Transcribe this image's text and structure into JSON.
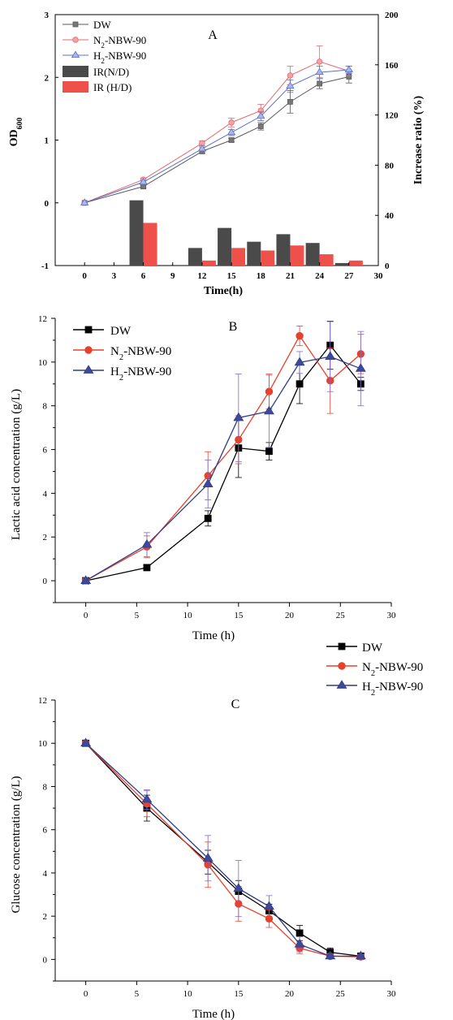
{
  "chart_data": [
    {
      "id": "A",
      "type": "line+bar",
      "panel_label": "A",
      "xlabel": "Time(h)",
      "ylabel_left": "OD",
      "ylabel_left_sub": "600",
      "ylabel_right": "Increase ratio (%)",
      "xlim": [
        -3,
        30
      ],
      "ylim_left": [
        -1,
        3
      ],
      "ylim_right": [
        0,
        200
      ],
      "xticks": [
        0,
        3,
        6,
        9,
        12,
        15,
        18,
        21,
        24,
        27,
        30
      ],
      "yticks_left": [
        -1,
        0,
        1,
        2,
        3
      ],
      "yticks_right": [
        0,
        40,
        80,
        120,
        160,
        200
      ],
      "legend": [
        {
          "label": "DW",
          "kind": "line",
          "color": "#595959",
          "marker": "square"
        },
        {
          "label": "N",
          "sub": "2",
          "rest": "-NBW-90",
          "kind": "line",
          "color": "#e8686c",
          "marker": "circle"
        },
        {
          "label": "H",
          "sub": "2",
          "rest": "-NBW-90",
          "kind": "line",
          "color": "#5a6fc9",
          "marker": "triangle"
        },
        {
          "label": "IR(N/D)",
          "kind": "bar",
          "color": "#4a4a4a"
        },
        {
          "label": "IR (H/D)",
          "kind": "bar",
          "color": "#f0504a"
        }
      ],
      "x": [
        0,
        6,
        12,
        15,
        18,
        21,
        24,
        27
      ],
      "series": [
        {
          "name": "DW",
          "color": "#595959",
          "marker": "square",
          "values": [
            0,
            0.26,
            0.82,
            1.0,
            1.22,
            1.61,
            1.9,
            2.01
          ],
          "err": [
            0,
            0.02,
            0.03,
            0.03,
            0.06,
            0.18,
            0.08,
            0.1
          ]
        },
        {
          "name": "N2-NBW-90",
          "color": "#e8686c",
          "marker": "circle",
          "values": [
            0,
            0.37,
            0.95,
            1.28,
            1.47,
            2.03,
            2.25,
            2.1
          ],
          "err": [
            0,
            0.02,
            0.04,
            0.07,
            0.1,
            0.15,
            0.25,
            0.08
          ]
        },
        {
          "name": "H2-NBW-90",
          "color": "#5a6fc9",
          "marker": "triangle",
          "values": [
            0,
            0.33,
            0.86,
            1.12,
            1.38,
            1.86,
            2.08,
            2.12
          ],
          "err": [
            0,
            0.02,
            0.03,
            0.05,
            0.07,
            0.1,
            0.1,
            0.06
          ]
        }
      ],
      "bars": [
        {
          "name": "IR(N/D)",
          "color": "#4a4a4a",
          "x": [
            6,
            12,
            15,
            18,
            21,
            24,
            27
          ],
          "values": [
            52,
            14,
            30,
            19,
            25,
            18,
            2
          ]
        },
        {
          "name": "IR (H/D)",
          "color": "#f0504a",
          "x": [
            6,
            12,
            15,
            18,
            21,
            24,
            27
          ],
          "values": [
            34,
            4,
            14,
            12,
            16,
            9,
            4
          ]
        }
      ]
    },
    {
      "id": "B",
      "type": "line",
      "panel_label": "B",
      "xlabel": "Time (h)",
      "ylabel": "Lactic acid concentration (g/L)",
      "xlim": [
        -3,
        30
      ],
      "ylim": [
        -1,
        12
      ],
      "xticks": [
        0,
        5,
        10,
        15,
        20,
        25,
        30
      ],
      "yticks": [
        0,
        2,
        4,
        6,
        8,
        10,
        12
      ],
      "x": [
        0,
        6,
        12,
        15,
        18,
        21,
        24,
        27
      ],
      "series": [
        {
          "name": "DW",
          "color": "#000000",
          "marker": "square",
          "values": [
            0,
            0.6,
            2.85,
            6.07,
            5.92,
            9.0,
            10.77,
            9.0
          ],
          "err": [
            0,
            0.05,
            0.35,
            1.35,
            0.4,
            0.9,
            1.1,
            0.3
          ]
        },
        {
          "name": "N2-NBW-90",
          "color": "#e8402a",
          "marker": "circle",
          "values": [
            0,
            1.55,
            4.8,
            6.45,
            8.65,
            11.2,
            9.15,
            10.37
          ],
          "err": [
            0,
            0.5,
            1.1,
            1.1,
            0.8,
            0.45,
            1.5,
            0.9
          ]
        },
        {
          "name": "H2-NBW-90",
          "color": "#2f3c8a",
          "marker": "triangle",
          "values": [
            0,
            1.65,
            4.42,
            7.45,
            7.75,
            9.98,
            10.25,
            9.7
          ],
          "err": [
            0,
            0.55,
            1.1,
            2.0,
            1.65,
            0.5,
            1.6,
            1.7
          ]
        }
      ]
    },
    {
      "id": "C",
      "type": "line",
      "panel_label": "C",
      "xlabel": "Time (h)",
      "ylabel": "Glucose concentration (g/L)",
      "xlim": [
        -3,
        30
      ],
      "ylim": [
        -1,
        12
      ],
      "xticks": [
        0,
        5,
        10,
        15,
        20,
        25,
        30
      ],
      "yticks": [
        0,
        2,
        4,
        6,
        8,
        10,
        12
      ],
      "x": [
        0,
        6,
        12,
        15,
        18,
        21,
        24,
        27
      ],
      "series": [
        {
          "name": "DW",
          "color": "#000000",
          "marker": "square",
          "values": [
            10,
            7.0,
            4.5,
            3.15,
            2.25,
            1.22,
            0.33,
            0.15
          ],
          "err": [
            0,
            0.6,
            0.55,
            0.5,
            0.3,
            0.35,
            0.2,
            0.1
          ]
        },
        {
          "name": "N2-NBW-90",
          "color": "#e8402a",
          "marker": "circle",
          "values": [
            10,
            7.2,
            4.38,
            2.57,
            1.88,
            0.52,
            0.15,
            0.12
          ],
          "err": [
            0,
            0.6,
            1.05,
            0.8,
            0.4,
            0.25,
            0.1,
            0.08
          ]
        },
        {
          "name": "H2-NBW-90",
          "color": "#2f3c8a",
          "marker": "triangle",
          "values": [
            10,
            7.4,
            4.68,
            3.28,
            2.45,
            0.7,
            0.15,
            0.15
          ],
          "err": [
            0,
            0.45,
            1.05,
            1.3,
            0.5,
            0.35,
            0.1,
            0.08
          ]
        }
      ]
    }
  ],
  "legend_bc": [
    {
      "label": "DW",
      "sub": "",
      "rest": "",
      "color": "#000000",
      "marker": "square"
    },
    {
      "label": "N",
      "sub": "2",
      "rest": "-NBW-90",
      "color": "#e8402a",
      "marker": "circle"
    },
    {
      "label": "H",
      "sub": "2",
      "rest": "-NBW-90",
      "color": "#2f3c8a",
      "marker": "triangle"
    }
  ]
}
